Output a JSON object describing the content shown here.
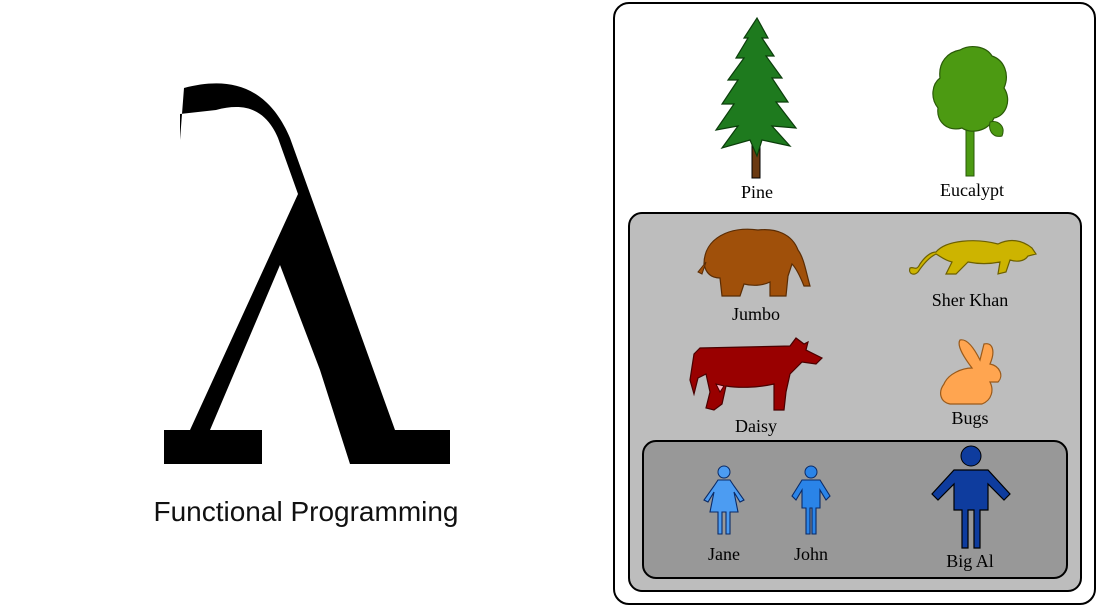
{
  "left": {
    "symbol": "λ",
    "caption": "Functional Programming"
  },
  "plants": [
    {
      "label": "Pine",
      "icon": "pine-tree-icon",
      "color": "#1e7a1e"
    },
    {
      "label": "Eucalypt",
      "icon": "eucalypt-tree-icon",
      "color": "#4c9a12"
    }
  ],
  "animals": [
    {
      "label": "Jumbo",
      "icon": "elephant-icon",
      "color": "#a0500a"
    },
    {
      "label": "Sher Khan",
      "icon": "big-cat-icon",
      "color": "#cdb400"
    },
    {
      "label": "Daisy",
      "icon": "cow-icon",
      "color": "#990000"
    },
    {
      "label": "Bugs",
      "icon": "rabbit-icon",
      "color": "#ffa550"
    }
  ],
  "people": [
    {
      "label": "Jane",
      "icon": "woman-icon",
      "color": "#4c9cf2"
    },
    {
      "label": "John",
      "icon": "man-icon",
      "color": "#2a84e8"
    },
    {
      "label": "Big Al",
      "icon": "large-man-icon",
      "color": "#0e3c9e"
    }
  ],
  "colors": {
    "outer_fill": "#ffffff",
    "middle_fill": "#bdbdbd",
    "inner_fill": "#989898"
  }
}
